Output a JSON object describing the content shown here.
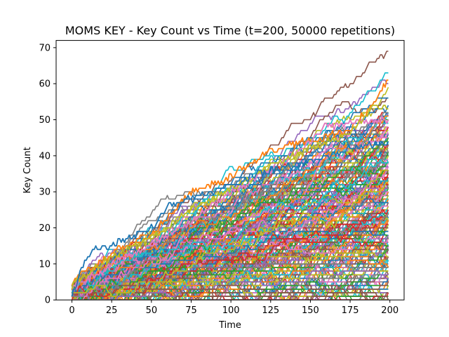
{
  "chart_data": {
    "type": "line",
    "title": "MOMS KEY - Key Count vs Time (t=200, 50000 repetitions)",
    "xlabel": "Time",
    "ylabel": "Key Count",
    "xlim": [
      -9.95,
      208.95
    ],
    "ylim": [
      0,
      72
    ],
    "xticks": [
      0,
      25,
      50,
      75,
      100,
      125,
      150,
      175,
      200
    ],
    "yticks": [
      0,
      10,
      20,
      30,
      40,
      50,
      60,
      70
    ],
    "grid": false,
    "legend": "none",
    "series_count_note": "many overlapping random-walk series (one per repetition), each starting at t=0 and ending at t=199",
    "colors": [
      "#1f77b4",
      "#ff7f0e",
      "#2ca02c",
      "#d62728",
      "#9467bd",
      "#8c564b",
      "#e377c2",
      "#7f7f7f",
      "#bcbd22",
      "#17becf"
    ],
    "highlight_series": [
      {
        "color": "#ff7f0e",
        "points": [
          [
            0,
            5
          ],
          [
            25,
            13
          ],
          [
            50,
            18
          ],
          [
            75,
            30
          ],
          [
            100,
            34
          ],
          [
            125,
            42
          ],
          [
            150,
            44
          ],
          [
            175,
            47
          ],
          [
            190,
            55
          ],
          [
            199,
            61
          ]
        ]
      },
      {
        "color": "#e377c2",
        "points": [
          [
            0,
            3
          ],
          [
            25,
            10
          ],
          [
            50,
            15
          ],
          [
            75,
            22
          ],
          [
            100,
            30
          ],
          [
            125,
            36
          ],
          [
            150,
            44
          ],
          [
            160,
            48
          ],
          [
            175,
            49
          ],
          [
            199,
            50
          ]
        ]
      },
      {
        "color": "#bcbd22",
        "points": [
          [
            0,
            4
          ],
          [
            25,
            12
          ],
          [
            50,
            17
          ],
          [
            75,
            25
          ],
          [
            100,
            31
          ],
          [
            125,
            37
          ],
          [
            150,
            42
          ],
          [
            175,
            46
          ],
          [
            190,
            54
          ],
          [
            199,
            53
          ]
        ]
      },
      {
        "color": "#1f77b4",
        "points": [
          [
            0,
            2
          ],
          [
            12,
            14
          ],
          [
            25,
            15
          ],
          [
            50,
            20
          ],
          [
            60,
            26
          ],
          [
            75,
            28
          ],
          [
            100,
            32
          ],
          [
            125,
            36
          ],
          [
            150,
            38
          ],
          [
            175,
            42
          ],
          [
            199,
            44
          ]
        ]
      }
    ]
  }
}
